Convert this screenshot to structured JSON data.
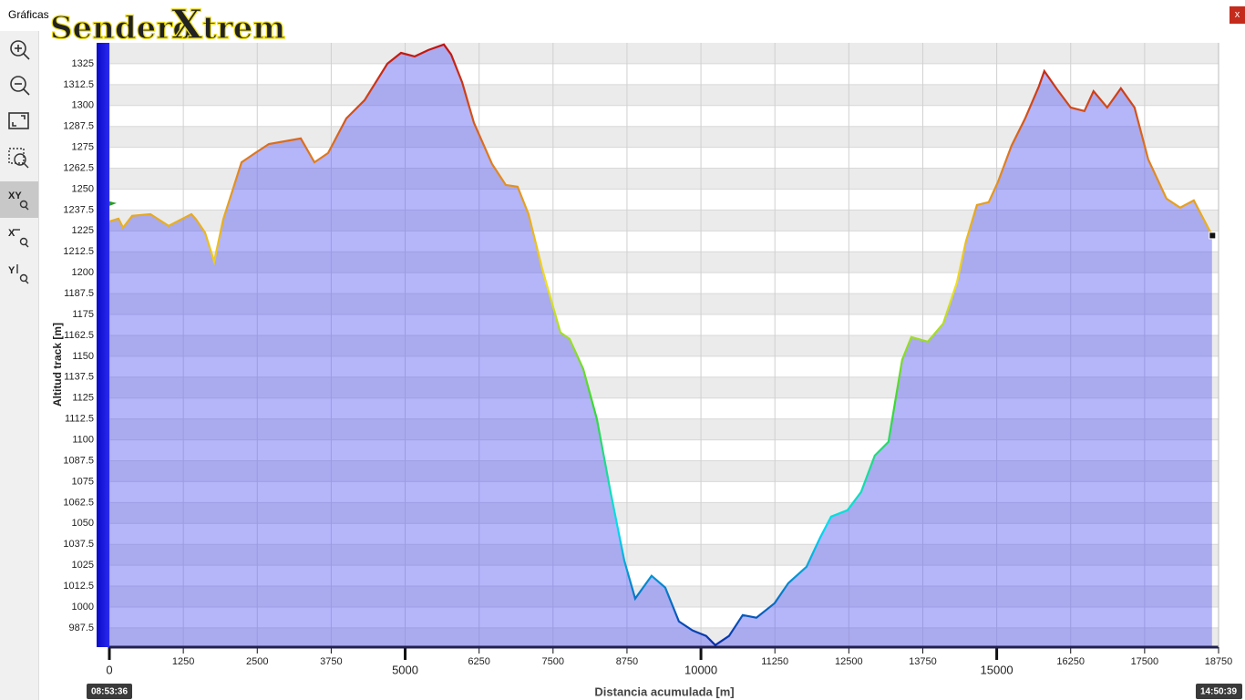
{
  "window": {
    "title": "Gráficas",
    "close": "x"
  },
  "logo": {
    "part1": "Sendero",
    "part2": "X",
    "part3": "trem"
  },
  "toolbar": {
    "xy": "XY",
    "x": "X",
    "y": "Y"
  },
  "times": {
    "start": "08:53:36",
    "end": "14:50:39"
  },
  "chart_data": {
    "type": "area",
    "x_label": "Distancia acumulada [m]",
    "y_label": "Altitud track [m]",
    "x": [
      0,
      154,
      231,
      385,
      693,
      1002,
      1387,
      1464,
      1618,
      1772,
      1926,
      2234,
      2465,
      2696,
      3235,
      3467,
      3698,
      4006,
      4314,
      4699,
      4930,
      5161,
      5392,
      5654,
      5777,
      5962,
      6162,
      6470,
      6701,
      6901,
      7086,
      7317,
      7625,
      7779,
      8010,
      8241,
      8472,
      8703,
      8888,
      9165,
      9396,
      9627,
      9858,
      10089,
      10243,
      10475,
      10706,
      10937,
      11245,
      11476,
      11784,
      12015,
      12200,
      12477,
      12708,
      12939,
      13170,
      13401,
      13556,
      13833,
      14095,
      14326,
      14480,
      14665,
      14865,
      15019,
      15250,
      15481,
      15712,
      15805,
      16020,
      16251,
      16482,
      16636,
      16868,
      17099,
      17330,
      17561,
      17869,
      18100,
      18331,
      18639
    ],
    "values": [
      1230.7,
      1232.3,
      1226.9,
      1234,
      1235,
      1228,
      1235,
      1232,
      1224,
      1206.7,
      1232,
      1266,
      1271.6,
      1277,
      1280.3,
      1266,
      1271.6,
      1292.3,
      1303.2,
      1325,
      1331.5,
      1329.4,
      1333.2,
      1336.5,
      1330.5,
      1314,
      1289.6,
      1265,
      1252.5,
      1251.4,
      1235,
      1202.4,
      1164.2,
      1160.4,
      1142.4,
      1112.4,
      1068.8,
      1027.9,
      1005,
      1018.7,
      1011.6,
      991.4,
      986,
      982.7,
      977.2,
      982.7,
      995.2,
      993.6,
      1002.3,
      1014.3,
      1024.1,
      1041.6,
      1054.1,
      1057.9,
      1068.8,
      1090.6,
      1098.8,
      1147.8,
      1161.5,
      1158.7,
      1169.6,
      1194.2,
      1218.7,
      1240.5,
      1242.2,
      1254.1,
      1275.9,
      1292.3,
      1311.4,
      1320.6,
      1309.7,
      1298.8,
      1296.7,
      1308.6,
      1298.8,
      1310.3,
      1298.8,
      1267.8,
      1244.3,
      1238.9,
      1243.2,
      1222.5
    ],
    "xlim": [
      0,
      18750
    ],
    "xticks": [
      0,
      1250,
      2500,
      3750,
      5000,
      6250,
      7500,
      8750,
      10000,
      11250,
      12500,
      13750,
      15000,
      16250,
      17500,
      18750
    ],
    "ylim": [
      976,
      1337.5
    ],
    "yticks": [
      987.5,
      1000,
      1012.5,
      1025,
      1037.5,
      1050,
      1062.5,
      1075,
      1087.5,
      1100,
      1112.5,
      1125,
      1137.5,
      1150,
      1162.5,
      1175,
      1187.5,
      1200,
      1212.5,
      1225,
      1237.5,
      1250,
      1262.5,
      1275,
      1287.5,
      1300,
      1312.5,
      1325
    ],
    "area_color": "rgba(90,90,245,0.45)",
    "line_gradient": [
      "#0a2aa8",
      "#00dff0",
      "#3ad830",
      "#f0e020",
      "#e08020",
      "#c01010"
    ],
    "grid": true
  }
}
